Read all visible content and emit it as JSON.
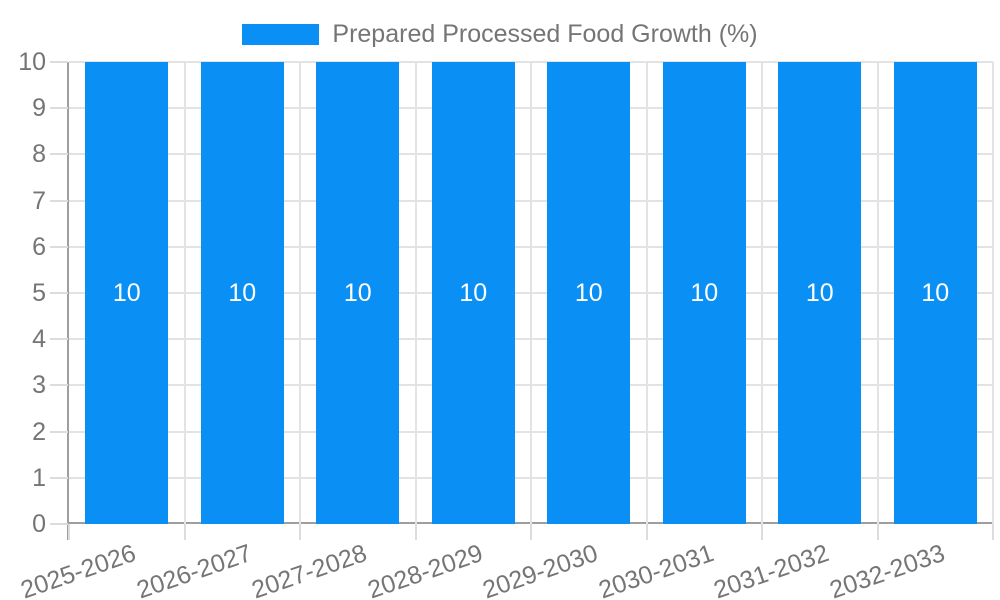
{
  "chart_data": {
    "type": "bar",
    "title": "",
    "legend": {
      "label": "Prepared Processed Food Growth (%)",
      "position": "top-center"
    },
    "categories": [
      "2025-2026",
      "2026-2027",
      "2027-2028",
      "2028-2029",
      "2029-2030",
      "2030-2031",
      "2031-2032",
      "2032-2033"
    ],
    "series": [
      {
        "name": "Prepared Processed Food Growth (%)",
        "values": [
          10,
          10,
          10,
          10,
          10,
          10,
          10,
          10
        ],
        "data_labels": [
          "10",
          "10",
          "10",
          "10",
          "10",
          "10",
          "10",
          "10"
        ]
      }
    ],
    "xlabel": "",
    "ylabel": "",
    "ylim": [
      0,
      10
    ],
    "yticks": [
      0,
      1,
      2,
      3,
      4,
      5,
      6,
      7,
      8,
      9,
      10
    ],
    "grid": true,
    "x_label_rotation_deg": -19,
    "colors": {
      "bar": "#0a90f5",
      "grid": "#e3e3e3",
      "tick": "#dcdcdc",
      "axis": "#9e9e9e",
      "label_text": "#757575",
      "bar_label_text": "#ffffff",
      "background": "#ffffff"
    }
  }
}
